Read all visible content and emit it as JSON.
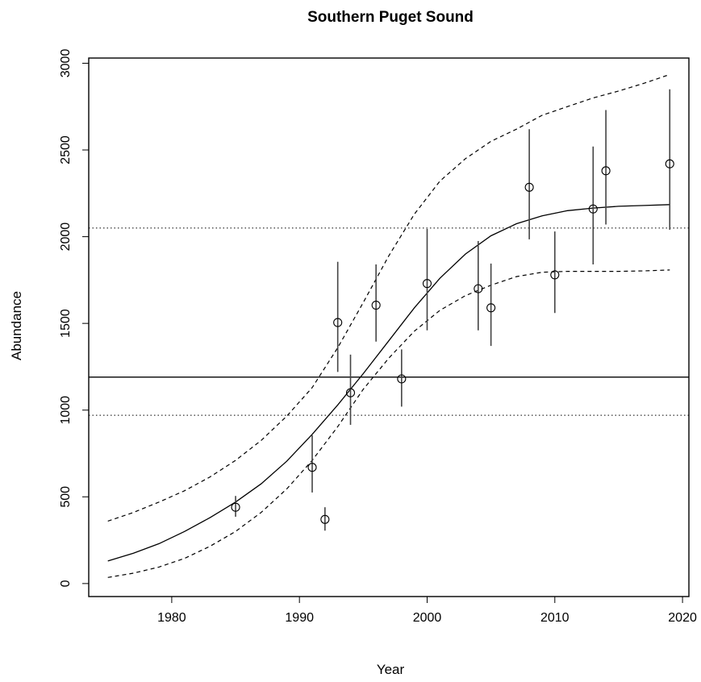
{
  "chart_data": {
    "type": "scatter",
    "title": "Southern Puget Sound",
    "xlabel": "Year",
    "ylabel": "Abundance",
    "xlim": [
      1973.5,
      2020.5
    ],
    "ylim": [
      -75,
      3030
    ],
    "xticks": [
      1980,
      1990,
      2000,
      2010,
      2020
    ],
    "yticks": [
      0,
      500,
      1000,
      1500,
      2000,
      2500,
      3000
    ],
    "xtick_labels": [
      "1980",
      "1990",
      "2000",
      "2010",
      "2020"
    ],
    "ytick_labels": [
      "0",
      "500",
      "1000",
      "1500",
      "2000",
      "2500",
      "3000"
    ],
    "grid": false,
    "points": [
      {
        "x": 1985,
        "y": 440,
        "lo": 385,
        "hi": 505
      },
      {
        "x": 1991,
        "y": 670,
        "lo": 525,
        "hi": 855
      },
      {
        "x": 1992,
        "y": 370,
        "lo": 305,
        "hi": 440
      },
      {
        "x": 1993,
        "y": 1505,
        "lo": 1220,
        "hi": 1855
      },
      {
        "x": 1994,
        "y": 1100,
        "lo": 915,
        "hi": 1320
      },
      {
        "x": 1996,
        "y": 1605,
        "lo": 1395,
        "hi": 1840
      },
      {
        "x": 1998,
        "y": 1180,
        "lo": 1020,
        "hi": 1350
      },
      {
        "x": 2000,
        "y": 1730,
        "lo": 1460,
        "hi": 2045
      },
      {
        "x": 2004,
        "y": 1700,
        "lo": 1460,
        "hi": 1975
      },
      {
        "x": 2005,
        "y": 1590,
        "lo": 1370,
        "hi": 1845
      },
      {
        "x": 2008,
        "y": 2285,
        "lo": 1985,
        "hi": 2620
      },
      {
        "x": 2010,
        "y": 1780,
        "lo": 1560,
        "hi": 2030
      },
      {
        "x": 2013,
        "y": 2160,
        "lo": 1840,
        "hi": 2520
      },
      {
        "x": 2014,
        "y": 2380,
        "lo": 2070,
        "hi": 2730
      },
      {
        "x": 2019,
        "y": 2420,
        "lo": 2040,
        "hi": 2850
      }
    ],
    "fit_curve": {
      "style": "solid",
      "x": [
        1975,
        1977,
        1979,
        1981,
        1983,
        1985,
        1987,
        1989,
        1991,
        1993,
        1994,
        1995,
        1997,
        1999,
        2001,
        2003,
        2005,
        2007,
        2009,
        2011,
        2013,
        2015,
        2017,
        2019
      ],
      "y": [
        130,
        175,
        230,
        300,
        380,
        470,
        575,
        705,
        860,
        1030,
        1120,
        1210,
        1400,
        1590,
        1760,
        1900,
        2005,
        2075,
        2120,
        2150,
        2165,
        2175,
        2180,
        2185
      ]
    },
    "upper_band": {
      "style": "dashed",
      "x": [
        1975,
        1977,
        1979,
        1981,
        1983,
        1985,
        1987,
        1989,
        1991,
        1993,
        1995,
        1997,
        1999,
        2001,
        2003,
        2005,
        2007,
        2009,
        2011,
        2013,
        2015,
        2017,
        2019
      ],
      "y": [
        360,
        410,
        470,
        535,
        615,
        710,
        825,
        965,
        1130,
        1360,
        1620,
        1890,
        2130,
        2320,
        2450,
        2550,
        2620,
        2700,
        2750,
        2800,
        2840,
        2885,
        2935
      ]
    },
    "lower_band": {
      "style": "dashed",
      "x": [
        1975,
        1977,
        1979,
        1981,
        1983,
        1985,
        1987,
        1989,
        1991,
        1993,
        1995,
        1997,
        1999,
        2001,
        2003,
        2005,
        2007,
        2009,
        2011,
        2013,
        2015,
        2017,
        2019
      ],
      "y": [
        35,
        60,
        95,
        145,
        215,
        300,
        410,
        545,
        710,
        905,
        1120,
        1300,
        1455,
        1575,
        1660,
        1720,
        1770,
        1795,
        1800,
        1800,
        1800,
        1803,
        1808
      ]
    },
    "hlines": [
      {
        "y": 1190,
        "style": "solid"
      },
      {
        "y": 2050,
        "style": "dotted"
      },
      {
        "y": 970,
        "style": "dotted"
      }
    ]
  }
}
